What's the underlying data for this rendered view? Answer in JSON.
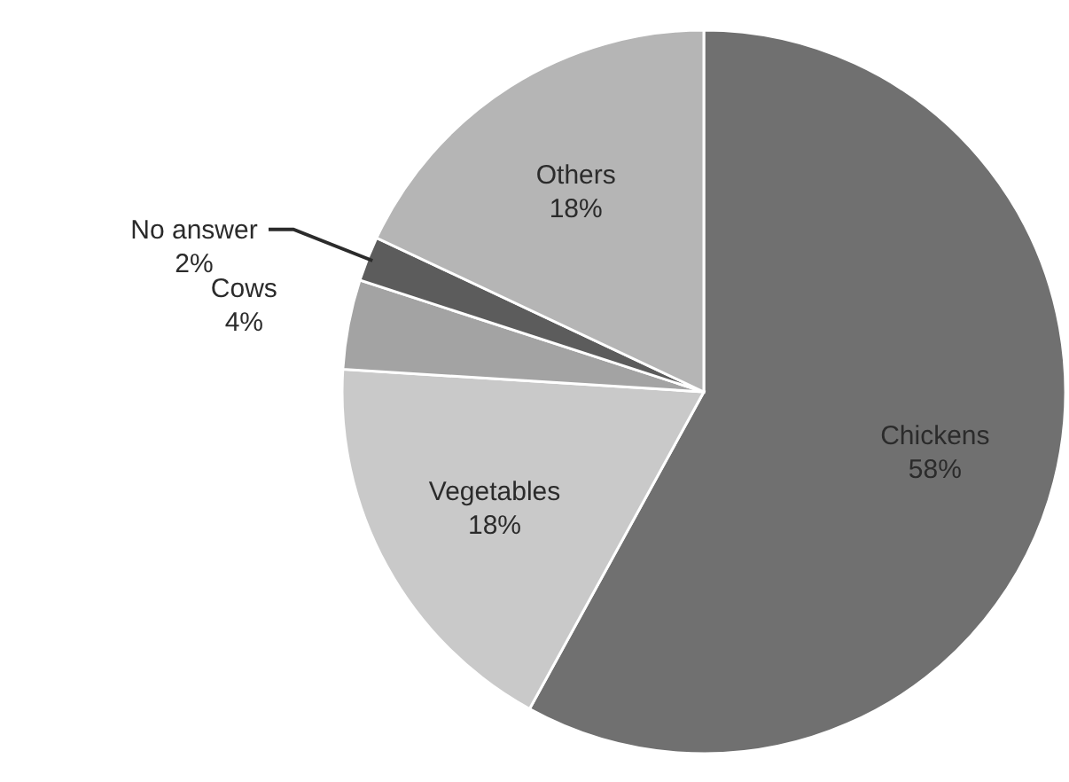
{
  "chart_data": {
    "type": "pie",
    "categories": [
      "Chickens",
      "Vegetables",
      "Cows",
      "No answer",
      "Others"
    ],
    "values": [
      58,
      18,
      4,
      2,
      18
    ],
    "value_labels": [
      "58%",
      "18%",
      "4%",
      "2%",
      "18%"
    ],
    "colors": [
      "#707070",
      "#c9c9c9",
      "#a3a3a3",
      "#5c5c5c",
      "#b5b5b5"
    ]
  }
}
